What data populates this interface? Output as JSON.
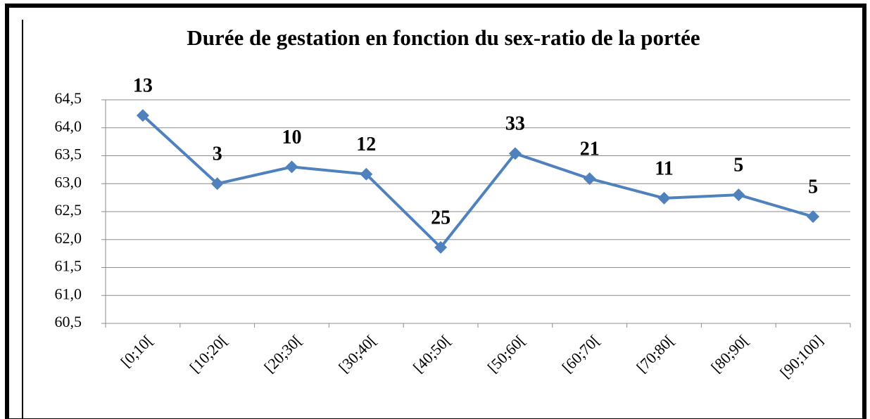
{
  "chart_data": {
    "type": "line",
    "title": "Durée de gestation en fonction du sex-ratio de la portée",
    "categories": [
      "[0;10[",
      "[10;20[",
      "[20;30[",
      "[30;40[",
      "[40;50[",
      "[50;60[",
      "[60;70[",
      "[70;80[",
      "[80;90[",
      "[90;100]"
    ],
    "series": [
      {
        "color": "#4f81bd",
        "values": [
          64.22,
          63.0,
          63.3,
          63.17,
          61.86,
          63.54,
          63.09,
          62.74,
          62.8,
          62.41
        ]
      }
    ],
    "annotations": [
      13,
      3,
      10,
      12,
      25,
      33,
      21,
      11,
      5,
      5
    ],
    "ylim": [
      60.5,
      64.5
    ],
    "yticks": [
      {
        "value": 60.5,
        "label": "60,5"
      },
      {
        "value": 61.0,
        "label": "61,0"
      },
      {
        "value": 61.5,
        "label": "61,5"
      },
      {
        "value": 62.0,
        "label": "62,0"
      },
      {
        "value": 62.5,
        "label": "62,5"
      },
      {
        "value": 63.0,
        "label": "63,0"
      },
      {
        "value": 63.5,
        "label": "63,5"
      },
      {
        "value": 64.0,
        "label": "64,0"
      },
      {
        "value": 64.5,
        "label": "64,5"
      }
    ],
    "grid": true
  }
}
